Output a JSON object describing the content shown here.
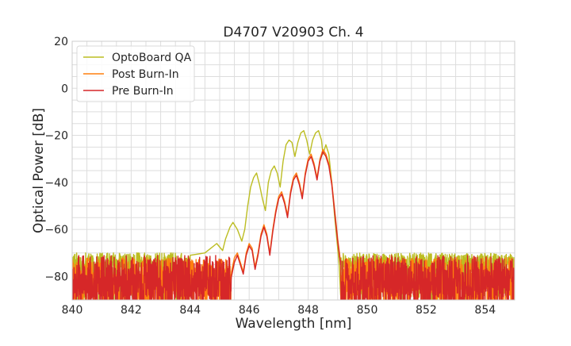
{
  "chart_data": {
    "type": "line",
    "title": "D4707 V20903 Ch. 4",
    "xlabel": "Wavelength [nm]",
    "ylabel": "Optical Power [dB]",
    "xlim": [
      840,
      855
    ],
    "ylim": [
      -90,
      20
    ],
    "xticks": [
      840,
      842,
      844,
      846,
      848,
      850,
      852,
      854
    ],
    "yticks": [
      -80,
      -60,
      -40,
      -20,
      0,
      20
    ],
    "xminor_step": 0.5,
    "yminor_step": 5,
    "grid": true,
    "legend_position": "top-left",
    "series": [
      {
        "name": "OptoBoard QA",
        "color": "#bcbd22",
        "noise_floor": -73,
        "noise_spread": 3,
        "points": [
          [
            844.0,
            -71
          ],
          [
            844.5,
            -70
          ],
          [
            844.7,
            -68
          ],
          [
            844.9,
            -66
          ],
          [
            845.1,
            -69
          ],
          [
            845.2,
            -64
          ],
          [
            845.35,
            -59
          ],
          [
            845.45,
            -57
          ],
          [
            845.6,
            -60
          ],
          [
            845.75,
            -65
          ],
          [
            845.85,
            -60
          ],
          [
            845.95,
            -50
          ],
          [
            846.05,
            -42
          ],
          [
            846.15,
            -38
          ],
          [
            846.25,
            -36
          ],
          [
            846.35,
            -41
          ],
          [
            846.45,
            -47
          ],
          [
            846.55,
            -52
          ],
          [
            846.65,
            -40
          ],
          [
            846.75,
            -35
          ],
          [
            846.85,
            -33
          ],
          [
            846.95,
            -36
          ],
          [
            847.05,
            -42
          ],
          [
            847.15,
            -31
          ],
          [
            847.25,
            -24
          ],
          [
            847.35,
            -22
          ],
          [
            847.45,
            -23
          ],
          [
            847.55,
            -29
          ],
          [
            847.65,
            -23
          ],
          [
            847.75,
            -19
          ],
          [
            847.85,
            -18
          ],
          [
            847.95,
            -22
          ],
          [
            848.05,
            -28
          ],
          [
            848.15,
            -22
          ],
          [
            848.25,
            -19
          ],
          [
            848.35,
            -18
          ],
          [
            848.45,
            -22
          ],
          [
            848.5,
            -28
          ],
          [
            848.6,
            -24
          ],
          [
            848.7,
            -28
          ],
          [
            848.8,
            -40
          ],
          [
            848.9,
            -55
          ],
          [
            849.0,
            -68
          ],
          [
            849.05,
            -75
          ],
          [
            849.1,
            -88
          ]
        ]
      },
      {
        "name": "Post Burn-In",
        "color": "#ff7f0e",
        "noise_floor": -80,
        "noise_spread": 8,
        "points": [
          [
            845.4,
            -78
          ],
          [
            845.5,
            -72
          ],
          [
            845.6,
            -70
          ],
          [
            845.7,
            -74
          ],
          [
            845.8,
            -78
          ],
          [
            845.9,
            -70
          ],
          [
            846.0,
            -66
          ],
          [
            846.1,
            -68
          ],
          [
            846.2,
            -76
          ],
          [
            846.3,
            -70
          ],
          [
            846.4,
            -62
          ],
          [
            846.5,
            -58
          ],
          [
            846.6,
            -62
          ],
          [
            846.7,
            -70
          ],
          [
            846.8,
            -60
          ],
          [
            846.9,
            -52
          ],
          [
            847.0,
            -46
          ],
          [
            847.1,
            -44
          ],
          [
            847.2,
            -48
          ],
          [
            847.3,
            -54
          ],
          [
            847.4,
            -44
          ],
          [
            847.5,
            -38
          ],
          [
            847.6,
            -36
          ],
          [
            847.7,
            -40
          ],
          [
            847.8,
            -46
          ],
          [
            847.9,
            -36
          ],
          [
            848.0,
            -30
          ],
          [
            848.1,
            -28
          ],
          [
            848.2,
            -32
          ],
          [
            848.3,
            -38
          ],
          [
            848.4,
            -30
          ],
          [
            848.5,
            -26
          ],
          [
            848.6,
            -28
          ],
          [
            848.7,
            -32
          ],
          [
            848.8,
            -40
          ],
          [
            848.9,
            -52
          ],
          [
            849.0,
            -64
          ],
          [
            849.1,
            -74
          ]
        ]
      },
      {
        "name": "Pre Burn-In",
        "color": "#d62728",
        "noise_floor": -80,
        "noise_spread": 9,
        "points": [
          [
            845.4,
            -80
          ],
          [
            845.5,
            -74
          ],
          [
            845.6,
            -71
          ],
          [
            845.7,
            -75
          ],
          [
            845.8,
            -79
          ],
          [
            845.9,
            -71
          ],
          [
            846.0,
            -67
          ],
          [
            846.1,
            -69
          ],
          [
            846.2,
            -77
          ],
          [
            846.3,
            -71
          ],
          [
            846.4,
            -63
          ],
          [
            846.5,
            -59
          ],
          [
            846.6,
            -63
          ],
          [
            846.7,
            -71
          ],
          [
            846.8,
            -61
          ],
          [
            846.9,
            -53
          ],
          [
            847.0,
            -47
          ],
          [
            847.1,
            -45
          ],
          [
            847.2,
            -49
          ],
          [
            847.3,
            -55
          ],
          [
            847.4,
            -45
          ],
          [
            847.5,
            -39
          ],
          [
            847.6,
            -37
          ],
          [
            847.7,
            -41
          ],
          [
            847.8,
            -47
          ],
          [
            847.9,
            -37
          ],
          [
            848.0,
            -31
          ],
          [
            848.1,
            -29
          ],
          [
            848.2,
            -33
          ],
          [
            848.3,
            -39
          ],
          [
            848.4,
            -31
          ],
          [
            848.5,
            -27
          ],
          [
            848.6,
            -29
          ],
          [
            848.7,
            -33
          ],
          [
            848.8,
            -41
          ],
          [
            848.9,
            -53
          ],
          [
            849.0,
            -65
          ],
          [
            849.1,
            -75
          ]
        ]
      }
    ]
  }
}
